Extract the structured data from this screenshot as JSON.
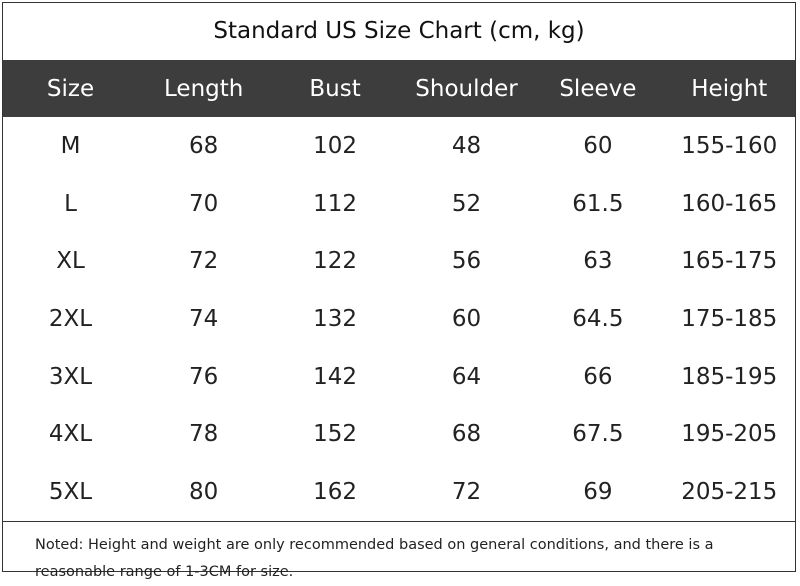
{
  "title": "Standard US Size Chart (cm, kg)",
  "table": {
    "header": [
      "Size",
      "Length",
      "Bust",
      "Shoulder",
      "Sleeve",
      "Height"
    ],
    "rows": [
      [
        "M",
        "68",
        "102",
        "48",
        "60",
        "155-160"
      ],
      [
        "L",
        "70",
        "112",
        "52",
        "61.5",
        "160-165"
      ],
      [
        "XL",
        "72",
        "122",
        "56",
        "63",
        "165-175"
      ],
      [
        "2XL",
        "74",
        "132",
        "60",
        "64.5",
        "175-185"
      ],
      [
        "3XL",
        "76",
        "142",
        "64",
        "66",
        "185-195"
      ],
      [
        "4XL",
        "78",
        "152",
        "68",
        "67.5",
        "195-205"
      ],
      [
        "5XL",
        "80",
        "162",
        "72",
        "69",
        "205-215"
      ]
    ]
  },
  "note": "Noted: Height and weight are only recommended based on general conditions, and there is a reasonable range of 1-3CM for size."
}
